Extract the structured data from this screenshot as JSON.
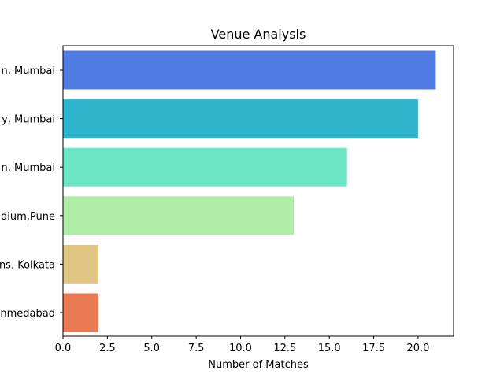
{
  "chart_data": {
    "type": "bar",
    "orientation": "horizontal",
    "title": "Venue Analysis",
    "xlabel": "Number of Matches",
    "ylabel": "",
    "xlim": [
      0,
      22
    ],
    "xticks": [
      0,
      2.5,
      5,
      7.5,
      10,
      12.5,
      15,
      17.5,
      20
    ],
    "xtick_labels": [
      "0.0",
      "2.5",
      "5.0",
      "7.5",
      "10.0",
      "12.5",
      "15.0",
      "17.5",
      "20.0"
    ],
    "grid": false,
    "categories": [
      "n, Mumbai",
      "y, Mumbai",
      "n, Mumbai",
      "dium,Pune",
      "ns, Kolkata",
      "nmedabad"
    ],
    "values": [
      21,
      20,
      16,
      13,
      2,
      2
    ],
    "colors": [
      "#4f7be3",
      "#2eb5cc",
      "#6ce6c4",
      "#b0eea8",
      "#e1c582",
      "#ea7a52"
    ]
  }
}
